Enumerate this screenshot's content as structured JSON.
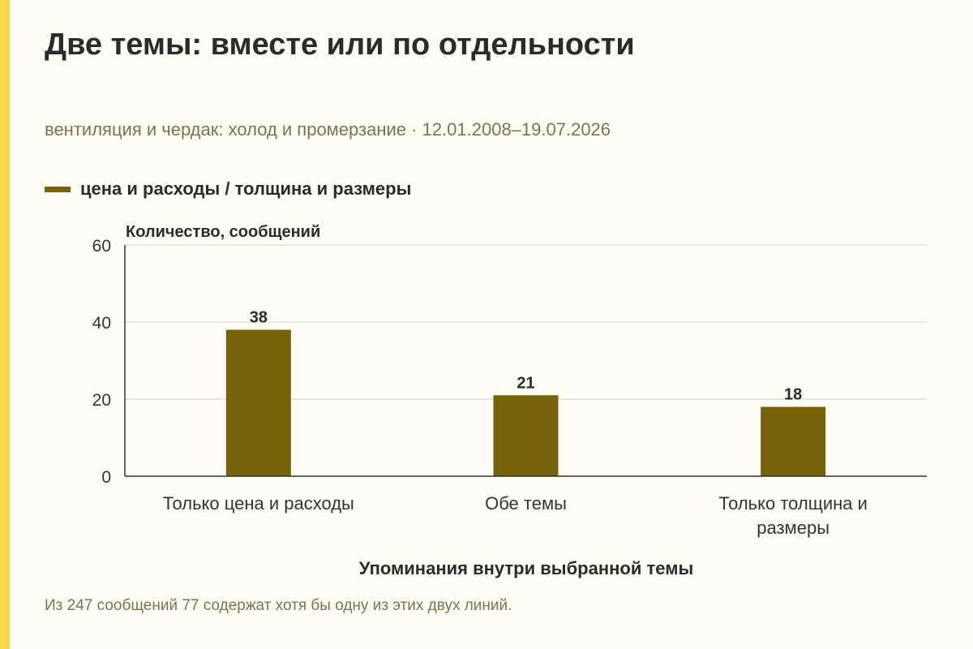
{
  "title": "Две темы: вместе или по отдельности",
  "subtitle": "вентиляция и чердак: холод и промерзание · 12.01.2008–19.07.2026",
  "legend": {
    "label": "цена и расходы / толщина и размеры",
    "color": "#75620b"
  },
  "footnote": "Из 247 сообщений 77 содержат хотя бы одну из этих двух линий.",
  "accent_color": "#ffd84a",
  "chart_data": {
    "type": "bar",
    "categories": [
      "Только цена и расходы",
      "Обе темы",
      "Только толщина и размеры"
    ],
    "category_lines": [
      [
        "Только цена и расходы"
      ],
      [
        "Обе темы"
      ],
      [
        "Только толщина и",
        "размеры"
      ]
    ],
    "series": [
      {
        "name": "цена и расходы / толщина и размеры",
        "values": [
          38,
          21,
          18
        ],
        "color": "#75620b"
      }
    ],
    "ylabel": "Количество, сообщений",
    "xlabel": "Упоминания внутри выбранной темы",
    "ylim": [
      0,
      60
    ],
    "yticks": [
      0,
      20,
      40,
      60
    ],
    "grid": true
  }
}
